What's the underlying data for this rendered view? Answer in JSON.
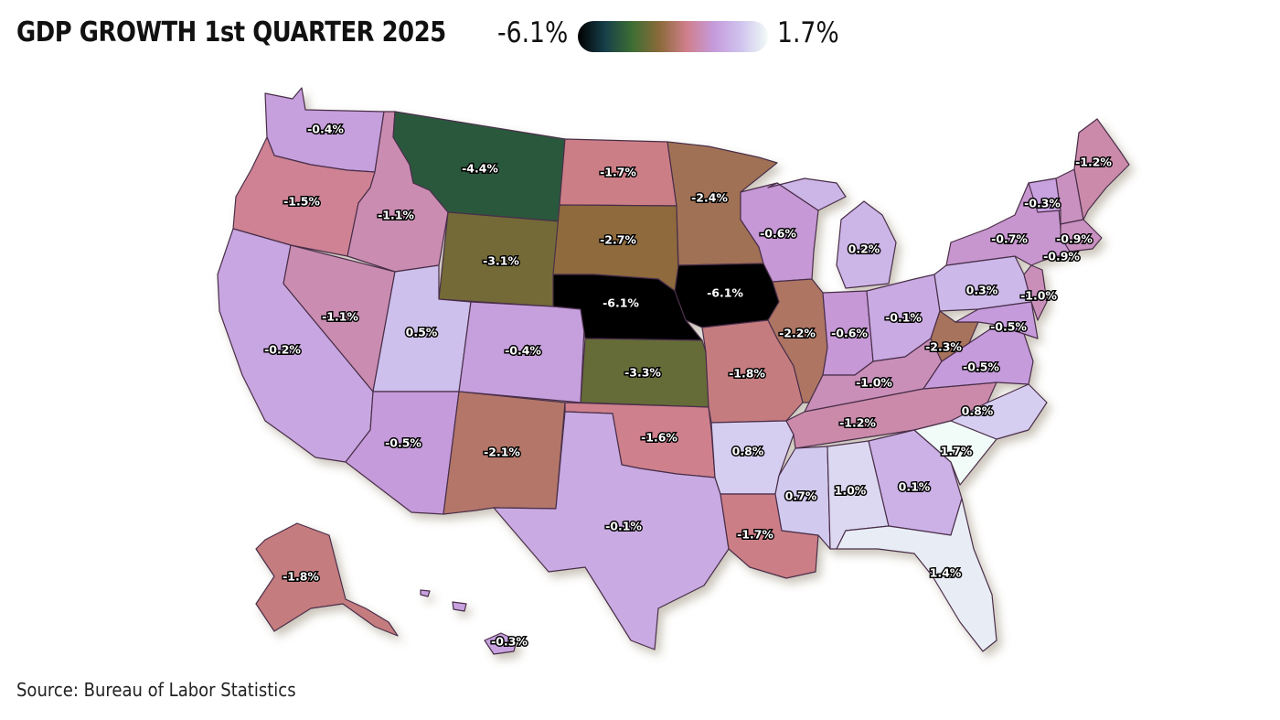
{
  "header": {
    "title": "GDP GROWTH 1st QUARTER 2025",
    "legend_min": "-6.1%",
    "legend_max": "1.7%"
  },
  "legend_colors": [
    "#000000",
    "#163f4a",
    "#3d6e33",
    "#8b6a3a",
    "#cf7f8a",
    "#c59adb",
    "#cfc3ee",
    "#f1fbf7"
  ],
  "footer": {
    "source": "Source: Bureau of Labor Statistics"
  },
  "states": [
    {
      "name": "WA",
      "label": "-0.4%",
      "value": -0.4
    },
    {
      "name": "OR",
      "label": "-1.5%",
      "value": -1.5
    },
    {
      "name": "CA",
      "label": "-0.2%",
      "value": -0.2
    },
    {
      "name": "NV",
      "label": "-1.1%",
      "value": -1.1
    },
    {
      "name": "ID",
      "label": "-1.1%",
      "value": -1.1
    },
    {
      "name": "MT",
      "label": "-4.4%",
      "value": -4.4
    },
    {
      "name": "WY",
      "label": "-3.1%",
      "value": -3.1
    },
    {
      "name": "UT",
      "label": "0.5%",
      "value": 0.5
    },
    {
      "name": "AZ",
      "label": "-0.5%",
      "value": -0.5
    },
    {
      "name": "CO",
      "label": "-0.4%",
      "value": -0.4
    },
    {
      "name": "NM",
      "label": "-2.1%",
      "value": -2.1
    },
    {
      "name": "ND",
      "label": "-1.7%",
      "value": -1.7
    },
    {
      "name": "SD",
      "label": "-2.7%",
      "value": -2.7
    },
    {
      "name": "NE",
      "label": "-6.1%",
      "value": -6.1
    },
    {
      "name": "KS",
      "label": "-3.3%",
      "value": -3.3
    },
    {
      "name": "OK",
      "label": "-1.6%",
      "value": -1.6
    },
    {
      "name": "TX",
      "label": "-0.1%",
      "value": -0.1
    },
    {
      "name": "MN",
      "label": "-2.4%",
      "value": -2.4
    },
    {
      "name": "IA",
      "label": "-6.1%",
      "value": -6.1
    },
    {
      "name": "MO",
      "label": "-1.8%",
      "value": -1.8
    },
    {
      "name": "AR",
      "label": "0.8%",
      "value": 0.8
    },
    {
      "name": "LA",
      "label": "-1.7%",
      "value": -1.7
    },
    {
      "name": "WI",
      "label": "-0.6%",
      "value": -0.6
    },
    {
      "name": "IL",
      "label": "-2.2%",
      "value": -2.2
    },
    {
      "name": "MI",
      "label": "0.2%",
      "value": 0.2
    },
    {
      "name": "IN",
      "label": "-0.6%",
      "value": -0.6
    },
    {
      "name": "OH",
      "label": "-0.1%",
      "value": -0.1
    },
    {
      "name": "KY",
      "label": "-1.0%",
      "value": -1.0
    },
    {
      "name": "TN",
      "label": "-1.2%",
      "value": -1.2
    },
    {
      "name": "MS",
      "label": "0.7%",
      "value": 0.7
    },
    {
      "name": "AL",
      "label": "1.0%",
      "value": 1.0
    },
    {
      "name": "GA",
      "label": "0.1%",
      "value": 0.1
    },
    {
      "name": "FL",
      "label": "1.4%",
      "value": 1.4
    },
    {
      "name": "SC",
      "label": "1.7%",
      "value": 1.7
    },
    {
      "name": "NC",
      "label": "0.8%",
      "value": 0.8
    },
    {
      "name": "VA",
      "label": "-0.5%",
      "value": -0.5
    },
    {
      "name": "WV",
      "label": "-2.3%",
      "value": -2.3
    },
    {
      "name": "PA",
      "label": "0.3%",
      "value": 0.3
    },
    {
      "name": "NY",
      "label": "-0.7%",
      "value": -0.7
    },
    {
      "name": "NJ",
      "label": "-1.0%",
      "value": -1.0
    },
    {
      "name": "MD",
      "label": "-0.5%",
      "value": -0.5
    },
    {
      "name": "VT",
      "label": "-0.3%",
      "value": -0.3
    },
    {
      "name": "NH",
      "label": "-0.9%",
      "value": -0.9
    },
    {
      "name": "MA",
      "label": "-0.9%",
      "value": -0.9
    },
    {
      "name": "ME",
      "label": "-1.2%",
      "value": -1.2
    },
    {
      "name": "AK",
      "label": "-1.8%",
      "value": -1.8
    },
    {
      "name": "HI",
      "label": "-0.3%",
      "value": -0.3
    }
  ]
}
